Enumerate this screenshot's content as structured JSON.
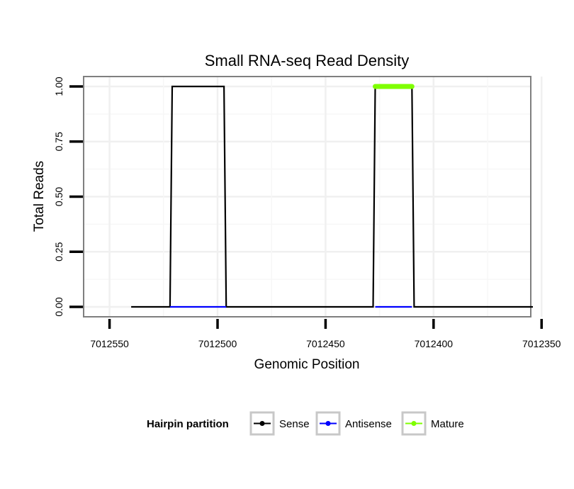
{
  "chart_data": {
    "type": "line",
    "title": "Small RNA-seq Read Density",
    "xlabel": "Genomic Position",
    "ylabel": "Total Reads",
    "x_reversed": true,
    "xlim": [
      7012355,
      7012562
    ],
    "ylim": [
      -0.045,
      1.045
    ],
    "x_ticks": [
      7012550,
      7012500,
      7012450,
      7012400,
      7012350
    ],
    "x_tick_labels": [
      "7012550",
      "7012500",
      "7012450",
      "7012400",
      "7012350"
    ],
    "y_ticks": [
      0,
      0.25,
      0.5,
      0.75,
      1.0
    ],
    "y_tick_labels": [
      "0.00",
      "0.25",
      "0.50",
      "0.75",
      "1.00"
    ],
    "grid": true,
    "legend_position": "bottom",
    "legend_title": "Hairpin partition",
    "series": [
      {
        "name": "Sense",
        "color": "#000000",
        "x": [
          7012540,
          7012522,
          7012521,
          7012497,
          7012496,
          7012428,
          7012427,
          7012410,
          7012409,
          7012354
        ],
        "y": [
          0,
          0,
          1,
          1,
          0,
          0,
          1,
          1,
          0,
          0
        ]
      },
      {
        "name": "Antisense",
        "color": "#0000ff",
        "x": [
          7012522,
          7012496
        ],
        "y": [
          0,
          0
        ]
      },
      {
        "name": "Antisense",
        "color": "#0000ff",
        "x": [
          7012427,
          7012410
        ],
        "y": [
          0,
          0
        ]
      },
      {
        "name": "Mature",
        "color": "#7fff00",
        "x": [
          7012427,
          7012410
        ],
        "y": [
          1,
          1
        ]
      }
    ],
    "legend": [
      {
        "name": "Sense",
        "color": "#000000"
      },
      {
        "name": "Antisense",
        "color": "#0000ff"
      },
      {
        "name": "Mature",
        "color": "#7fff00"
      }
    ]
  }
}
